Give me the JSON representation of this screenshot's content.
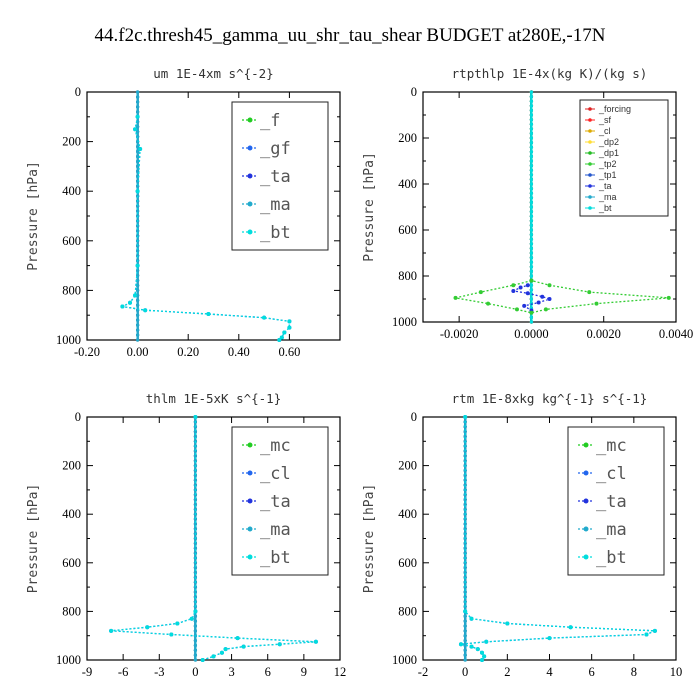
{
  "title": "44.f2c.thresh45_gamma_uu_shr_tau_shear  BUDGET at280E,-17N",
  "colors": {
    "f": "#22cc22",
    "gf": "#2266ee",
    "ta": "#2233dd",
    "ma": "#22aacc",
    "bt": "#00dddd",
    "forcing": "#dd2222",
    "sf": "#ff2222",
    "cl": "#ddaa00",
    "dp2": "#ffdd33",
    "dp1": "#22bb22",
    "tp2": "#33cc33",
    "tp1": "#2255cc",
    "mc": "#22cc22"
  },
  "chart_data": [
    {
      "type": "line",
      "title": "um   1E-4xm s^{-2}",
      "ylabel": "Pressure [hPa]",
      "xlim": [
        -0.2,
        0.8
      ],
      "ylim": [
        0,
        1000
      ],
      "xticks": [
        "-0.20",
        "0.00",
        "0.20",
        "0.40",
        "0.60"
      ],
      "xtick_values": [
        -0.2,
        0,
        0.2,
        0.4,
        0.6
      ],
      "yticks": [
        "0",
        "200",
        "400",
        "600",
        "800",
        "1000"
      ],
      "legend": {
        "position": "top-right",
        "style": "large"
      },
      "series": [
        {
          "name": "_f",
          "color_key": "f",
          "points": [
            [
              0,
              0
            ],
            [
              0,
              1000
            ]
          ]
        },
        {
          "name": "_gf",
          "color_key": "gf",
          "points": [
            [
              0.0,
              100
            ],
            [
              -0.01,
              150
            ],
            [
              0.01,
              230
            ],
            [
              0.0,
              400
            ],
            [
              0.0,
              700
            ],
            [
              -0.01,
              820
            ],
            [
              -0.03,
              850
            ],
            [
              -0.06,
              865
            ],
            [
              0.03,
              880
            ],
            [
              0.28,
              895
            ],
            [
              0.5,
              910
            ],
            [
              0.6,
              925
            ],
            [
              0.6,
              950
            ],
            [
              0.58,
              970
            ],
            [
              0.57,
              990
            ],
            [
              0.56,
              1000
            ]
          ]
        },
        {
          "name": "_ta",
          "color_key": "ta",
          "points": [
            [
              0,
              0
            ],
            [
              0,
              1000
            ]
          ]
        },
        {
          "name": "_ma",
          "color_key": "ma",
          "points": [
            [
              0,
              0
            ],
            [
              0,
              1000
            ]
          ]
        },
        {
          "name": "_bt",
          "color_key": "bt",
          "points": [
            [
              0.0,
              100
            ],
            [
              -0.01,
              150
            ],
            [
              0.01,
              230
            ],
            [
              0.0,
              400
            ],
            [
              0.0,
              700
            ],
            [
              -0.01,
              820
            ],
            [
              -0.03,
              850
            ],
            [
              -0.06,
              865
            ],
            [
              0.03,
              880
            ],
            [
              0.28,
              895
            ],
            [
              0.5,
              910
            ],
            [
              0.6,
              925
            ],
            [
              0.6,
              950
            ],
            [
              0.58,
              970
            ],
            [
              0.57,
              990
            ],
            [
              0.56,
              1000
            ]
          ]
        }
      ]
    },
    {
      "type": "line",
      "title": "rtpthlp   1E-4x(kg K)/(kg s)",
      "ylabel": "Pressure [hPa]",
      "xlim": [
        -0.003,
        0.004
      ],
      "ylim": [
        0,
        1000
      ],
      "xticks": [
        "-0.0020",
        "0.0000",
        "0.0020",
        "0.0040"
      ],
      "xtick_values": [
        -0.002,
        0,
        0.002,
        0.004
      ],
      "yticks": [
        "0",
        "200",
        "400",
        "600",
        "800",
        "1000"
      ],
      "legend": {
        "position": "top-right",
        "style": "small"
      },
      "series": [
        {
          "name": "_forcing",
          "color_key": "forcing",
          "points": [
            [
              0,
              0
            ],
            [
              0,
              1000
            ]
          ]
        },
        {
          "name": "_sf",
          "color_key": "sf",
          "points": [
            [
              0,
              0
            ],
            [
              0,
              1000
            ]
          ]
        },
        {
          "name": "_cl",
          "color_key": "cl",
          "points": [
            [
              0,
              0
            ],
            [
              0,
              1000
            ]
          ]
        },
        {
          "name": "_dp2",
          "color_key": "dp2",
          "points": [
            [
              0,
              0
            ],
            [
              0,
              1000
            ]
          ]
        },
        {
          "name": "_dp1",
          "color_key": "dp1",
          "points": [
            [
              0,
              0
            ],
            [
              0,
              1000
            ]
          ]
        },
        {
          "name": "_tp2",
          "color_key": "tp2",
          "points": [
            [
              0,
              820
            ],
            [
              -0.0005,
              840
            ],
            [
              -0.0014,
              870
            ],
            [
              -0.0021,
              895
            ],
            [
              -0.0012,
              920
            ],
            [
              -0.0004,
              945
            ],
            [
              0,
              960
            ],
            [
              0.0004,
              945
            ],
            [
              0.0018,
              920
            ],
            [
              0.0038,
              895
            ],
            [
              0.0016,
              870
            ],
            [
              0.0005,
              840
            ],
            [
              0,
              820
            ]
          ]
        },
        {
          "name": "_tp1",
          "color_key": "tp1",
          "points": [
            [
              0,
              0
            ],
            [
              0,
              1000
            ]
          ]
        },
        {
          "name": "_ta",
          "color_key": "ta",
          "points": [
            [
              0,
              820
            ],
            [
              -0.0001,
              840
            ],
            [
              -0.0003,
              850
            ],
            [
              -0.0005,
              865
            ],
            [
              -0.0001,
              875
            ],
            [
              0.0003,
              890
            ],
            [
              0.0005,
              900
            ],
            [
              0.0002,
              915
            ],
            [
              -0.0002,
              930
            ],
            [
              0,
              950
            ]
          ]
        },
        {
          "name": "_ma",
          "color_key": "ma",
          "points": [
            [
              0,
              0
            ],
            [
              0,
              1000
            ]
          ]
        },
        {
          "name": "_bt",
          "color_key": "bt",
          "points": [
            [
              0,
              0
            ],
            [
              0,
              1000
            ]
          ]
        }
      ]
    },
    {
      "type": "line",
      "title": "thlm   1E-5xK s^{-1}",
      "ylabel": "Pressure [hPa]",
      "xlim": [
        -9,
        12
      ],
      "ylim": [
        0,
        1000
      ],
      "xticks": [
        "-9",
        "-6",
        "-3",
        "0",
        "3",
        "6",
        "9",
        "12"
      ],
      "xtick_values": [
        -9,
        -6,
        -3,
        0,
        3,
        6,
        9,
        12
      ],
      "yticks": [
        "0",
        "200",
        "400",
        "600",
        "800",
        "1000"
      ],
      "legend": {
        "position": "top-right",
        "style": "large"
      },
      "series": [
        {
          "name": "_mc",
          "color_key": "mc",
          "points": [
            [
              0,
              0
            ],
            [
              0,
              1000
            ]
          ]
        },
        {
          "name": "_cl",
          "color_key": "gf",
          "points": [
            [
              0,
              0
            ],
            [
              0,
              800
            ],
            [
              -0.3,
              830
            ],
            [
              -1.5,
              850
            ],
            [
              -4,
              865
            ],
            [
              -7,
              880
            ],
            [
              -2,
              895
            ],
            [
              3.5,
              910
            ],
            [
              10,
              925
            ],
            [
              7,
              935
            ],
            [
              4,
              945
            ],
            [
              2.5,
              955
            ],
            [
              2.2,
              970
            ],
            [
              1.5,
              985
            ],
            [
              0.6,
              1000
            ]
          ]
        },
        {
          "name": "_ta",
          "color_key": "ta",
          "points": [
            [
              0,
              0
            ],
            [
              0,
              1000
            ]
          ]
        },
        {
          "name": "_ma",
          "color_key": "ma",
          "points": [
            [
              0,
              0
            ],
            [
              0,
              1000
            ]
          ]
        },
        {
          "name": "_bt",
          "color_key": "bt",
          "points": [
            [
              0,
              0
            ],
            [
              0,
              800
            ],
            [
              -0.3,
              830
            ],
            [
              -1.5,
              850
            ],
            [
              -4,
              865
            ],
            [
              -7,
              880
            ],
            [
              -2,
              895
            ],
            [
              3.5,
              910
            ],
            [
              10,
              925
            ],
            [
              7,
              935
            ],
            [
              4,
              945
            ],
            [
              2.5,
              955
            ],
            [
              2.2,
              970
            ],
            [
              1.5,
              985
            ],
            [
              0.6,
              1000
            ]
          ]
        }
      ]
    },
    {
      "type": "line",
      "title": "rtm   1E-8xkg kg^{-1} s^{-1}",
      "ylabel": "Pressure [hPa]",
      "xlim": [
        -2,
        10
      ],
      "ylim": [
        0,
        1000
      ],
      "xticks": [
        "-2",
        "0",
        "2",
        "4",
        "6",
        "8",
        "10"
      ],
      "xtick_values": [
        -2,
        0,
        2,
        4,
        6,
        8,
        10
      ],
      "yticks": [
        "0",
        "200",
        "400",
        "600",
        "800",
        "1000"
      ],
      "legend": {
        "position": "top-right",
        "style": "large"
      },
      "series": [
        {
          "name": "_mc",
          "color_key": "mc",
          "points": [
            [
              0,
              0
            ],
            [
              0,
              1000
            ]
          ]
        },
        {
          "name": "_cl",
          "color_key": "gf",
          "points": [
            [
              0,
              0
            ],
            [
              0,
              800
            ],
            [
              0.3,
              830
            ],
            [
              2,
              850
            ],
            [
              5,
              865
            ],
            [
              9,
              880
            ],
            [
              8.6,
              895
            ],
            [
              4,
              910
            ],
            [
              1,
              925
            ],
            [
              -0.2,
              935
            ],
            [
              0.3,
              945
            ],
            [
              0.6,
              955
            ],
            [
              0.8,
              970
            ],
            [
              0.9,
              985
            ],
            [
              0.8,
              1000
            ]
          ]
        },
        {
          "name": "_ta",
          "color_key": "ta",
          "points": [
            [
              0,
              0
            ],
            [
              0,
              1000
            ]
          ]
        },
        {
          "name": "_ma",
          "color_key": "ma",
          "points": [
            [
              0,
              0
            ],
            [
              0,
              1000
            ]
          ]
        },
        {
          "name": "_bt",
          "color_key": "bt",
          "points": [
            [
              0,
              0
            ],
            [
              0,
              800
            ],
            [
              0.3,
              830
            ],
            [
              2,
              850
            ],
            [
              5,
              865
            ],
            [
              9,
              880
            ],
            [
              8.6,
              895
            ],
            [
              4,
              910
            ],
            [
              1,
              925
            ],
            [
              -0.2,
              935
            ],
            [
              0.3,
              945
            ],
            [
              0.6,
              955
            ],
            [
              0.8,
              970
            ],
            [
              0.9,
              985
            ],
            [
              0.8,
              1000
            ]
          ]
        }
      ]
    }
  ]
}
